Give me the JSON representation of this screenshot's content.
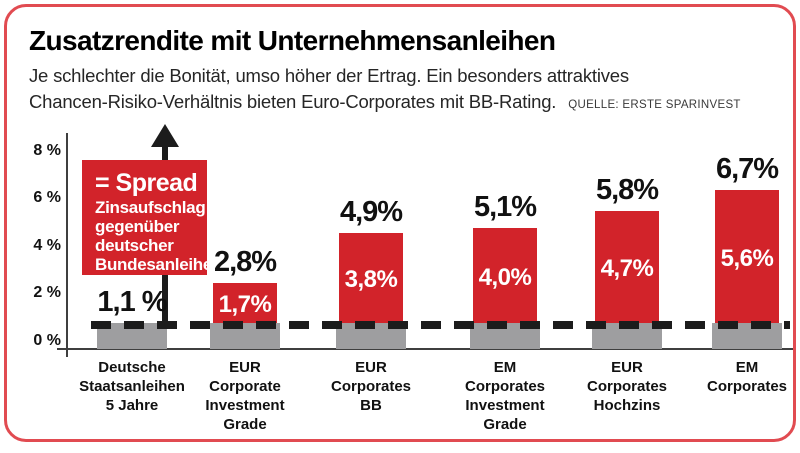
{
  "header": {
    "title": "Zusatzrendite mit Unternehmensanleihen",
    "subtitle_line1": "Je schlechter die Bonität, umso höher der Ertrag. Ein besonders attraktives",
    "subtitle_line2": "Chancen-Risiko-Verhältnis bieten Euro-Corporates mit BB-Rating.",
    "source": "QUELLE: ERSTE SPARINVEST"
  },
  "colors": {
    "bar_red": "#d2232a",
    "bar_gray": "#9e9ea0",
    "frame_red": "#e14b51",
    "ink_black": "#1c1c1c"
  },
  "chart_data": {
    "type": "bar",
    "stacked": true,
    "title": "Zusatzrendite mit Unternehmensanleihen",
    "xlabel": "",
    "ylabel": "",
    "ylim": [
      0,
      8
    ],
    "grid": false,
    "ytick_values": [
      8,
      6,
      4,
      2,
      0
    ],
    "ytick_labels": [
      "8 %",
      "6 %",
      "4 %",
      "2 %",
      "0 %"
    ],
    "categories": [
      "Deutsche Staatsanleihen 5 Jahre",
      "EUR Corporate Investment Grade",
      "EUR Corporates BB",
      "EM Corporates Investment Grade",
      "EUR Corporates Hochzins",
      "EM Corporates"
    ],
    "category_lines": [
      [
        "Deutsche",
        "Staatsanleihen",
        "5 Jahre"
      ],
      [
        "EUR",
        "Corporate",
        "Investment",
        "Grade"
      ],
      [
        "EUR",
        "Corporates",
        "BB"
      ],
      [
        "EM",
        "Corporates",
        "Investment",
        "Grade"
      ],
      [
        "EUR",
        "Corporates",
        "Hochzins"
      ],
      [
        "EM",
        "Corporates"
      ]
    ],
    "series": [
      {
        "name": "Basis deutsche Bundesanleihe",
        "color": "#9e9ea0",
        "values": [
          1.1,
          1.1,
          1.1,
          1.1,
          1.1,
          1.1
        ]
      },
      {
        "name": "Spread",
        "color": "#d2232a",
        "values": [
          0,
          1.7,
          3.8,
          4.0,
          4.7,
          5.6
        ]
      }
    ],
    "totals": [
      1.1,
      2.8,
      4.9,
      5.1,
      5.8,
      6.7
    ],
    "total_labels": [
      "1,1 %",
      "2,8%",
      "4,9%",
      "5,1%",
      "5,8%",
      "6,7%"
    ],
    "spread_labels": [
      "",
      "1,7%",
      "3,8%",
      "4,0%",
      "4,7%",
      "5,6%"
    ],
    "dashed_line_value": 1.1,
    "annotation": {
      "heading": "= Spread",
      "lines": [
        "Zinsaufschlag",
        "gegenüber",
        "deutscher",
        "Bundesanleihe"
      ]
    }
  }
}
